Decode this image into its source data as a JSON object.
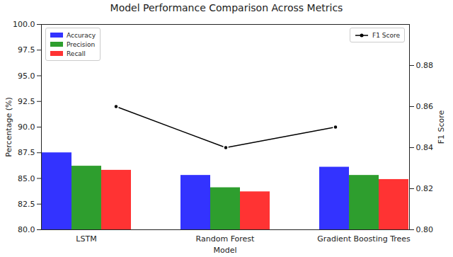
{
  "chart_data": {
    "type": "bar",
    "title": "Model Performance Comparison Across Metrics",
    "xlabel": "Model",
    "ylabel": "Percentage (%)",
    "y2label": "F1 Score",
    "categories": [
      "LSTM",
      "Random Forest",
      "Gradient Boosting Trees"
    ],
    "series": [
      {
        "name": "Accuracy",
        "color": "#3333ff",
        "values": [
          87.5,
          85.3,
          86.1
        ]
      },
      {
        "name": "Precision",
        "color": "#2e9e2e",
        "values": [
          86.2,
          84.1,
          85.3
        ]
      },
      {
        "name": "Recall",
        "color": "#ff3333",
        "values": [
          85.8,
          83.7,
          84.9
        ]
      },
      {
        "name": "F1 Score",
        "type": "line",
        "axis": "y2",
        "color": "#000000",
        "marker": "o",
        "values": [
          0.86,
          0.84,
          0.85
        ]
      }
    ],
    "ylim": [
      80,
      100
    ],
    "yticks": [
      {
        "value": 80,
        "label": "80.0"
      },
      {
        "value": 82.5,
        "label": "82.5"
      },
      {
        "value": 85,
        "label": "85.0"
      },
      {
        "value": 87.5,
        "label": "87.5"
      },
      {
        "value": 90,
        "label": "90.0"
      },
      {
        "value": 92.5,
        "label": "92.5"
      },
      {
        "value": 95,
        "label": "95.0"
      },
      {
        "value": 97.5,
        "label": "97.5"
      },
      {
        "value": 100,
        "label": "100.0"
      }
    ],
    "y2lim": [
      0.8,
      0.9
    ],
    "y2ticks": [
      {
        "value": 0.8,
        "label": "0.80"
      },
      {
        "value": 0.82,
        "label": "0.82"
      },
      {
        "value": 0.84,
        "label": "0.84"
      },
      {
        "value": 0.86,
        "label": "0.86"
      },
      {
        "value": 0.88,
        "label": "0.88"
      }
    ],
    "grid": false,
    "legend": "upper left"
  }
}
